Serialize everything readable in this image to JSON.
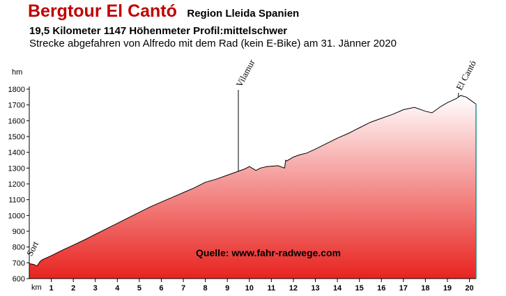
{
  "header": {
    "title": "Bergtour El Cantó",
    "region": "Region Lleida Spanien",
    "stats": "19,5 Kilometer  1147 Höhenmeter  Profil:mittelschwer",
    "subtitle": "Strecke abgefahren von Alfredo mit dem Rad (kein E-Bike) am 31. Jänner 2020"
  },
  "chart_data": {
    "type": "area",
    "xlabel": "km",
    "ylabel": "hm",
    "xlim": [
      0,
      20.3
    ],
    "ylim": [
      600,
      1800
    ],
    "x_ticks": [
      1,
      2,
      3,
      4,
      5,
      6,
      7,
      8,
      9,
      10,
      11,
      12,
      13,
      14,
      15,
      16,
      17,
      18,
      19,
      20
    ],
    "y_ticks": [
      600,
      700,
      800,
      900,
      1000,
      1100,
      1200,
      1300,
      1400,
      1500,
      1600,
      1700,
      1800
    ],
    "fill_top_color": "#ffffff",
    "fill_bottom_color": "#e8231f",
    "series": [
      {
        "x": [
          0,
          0.2,
          0.35,
          0.5,
          0.6,
          1,
          1.5,
          2,
          2.5,
          3,
          3.5,
          4,
          4.5,
          5,
          5.5,
          6,
          6.5,
          7,
          7.5,
          8,
          8.5,
          9,
          9.5,
          9.8,
          10,
          10.3,
          10.5,
          10.8,
          11.3,
          11.6,
          11.65,
          11.7,
          12,
          12.3,
          12.6,
          13,
          13.5,
          14,
          14.5,
          15,
          15.5,
          16,
          16.5,
          17,
          17.5,
          18,
          18.3,
          18.7,
          19,
          19.4,
          19.6,
          19.85,
          20,
          20.3
        ],
        "y": [
          695,
          690,
          680,
          710,
          720,
          745,
          780,
          812,
          845,
          880,
          915,
          950,
          985,
          1020,
          1055,
          1085,
          1115,
          1145,
          1175,
          1210,
          1230,
          1255,
          1280,
          1295,
          1310,
          1285,
          1300,
          1310,
          1315,
          1300,
          1350,
          1345,
          1370,
          1385,
          1395,
          1420,
          1455,
          1490,
          1520,
          1555,
          1590,
          1615,
          1640,
          1670,
          1685,
          1660,
          1650,
          1690,
          1715,
          1740,
          1760,
          1750,
          1735,
          1705
        ]
      }
    ],
    "annotations": [
      {
        "label": "Sort",
        "x": 0.2
      },
      {
        "label": "Vilamur",
        "x": 9.5
      },
      {
        "label": "El Cantó",
        "x": 19.5
      }
    ],
    "source_note": "Quelle: www.fahr-radwege.com"
  }
}
